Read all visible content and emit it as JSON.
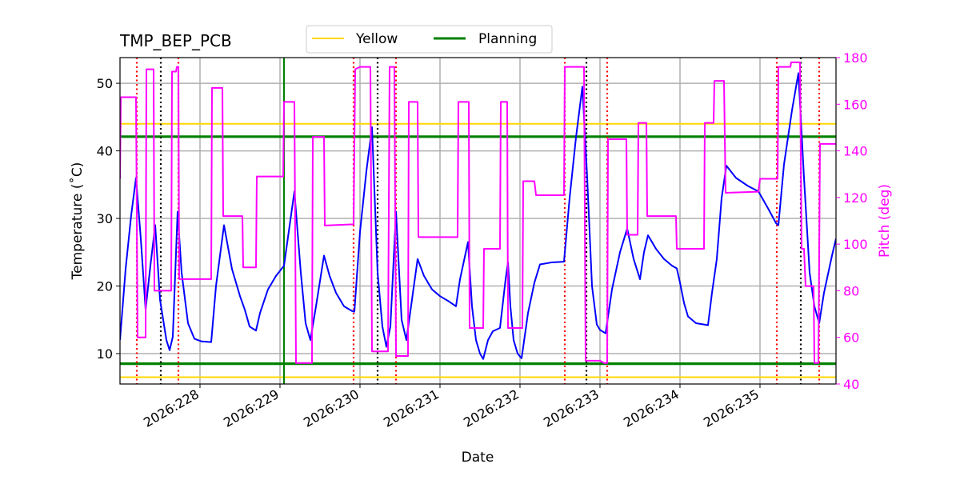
{
  "chart_data": {
    "type": "line",
    "title": "TMP_BEP_PCB",
    "xlabel": "Date",
    "ylabel": "Temperature ($^\\circ$C)",
    "ylabel_display": "Temperature (˚C)",
    "y2label": "Pitch (deg)",
    "xlim": [
      227.0,
      235.95
    ],
    "ylim": [
      5.5,
      53.8
    ],
    "y2lim": [
      40,
      180
    ],
    "x_ticks": [
      {
        "value": 228,
        "label": "2026:228"
      },
      {
        "value": 229,
        "label": "2026:229"
      },
      {
        "value": 230,
        "label": "2026:230"
      },
      {
        "value": 231,
        "label": "2026:231"
      },
      {
        "value": 232,
        "label": "2026:232"
      },
      {
        "value": 233,
        "label": "2026:233"
      },
      {
        "value": 234,
        "label": "2026:234"
      },
      {
        "value": 235,
        "label": "2026:235"
      }
    ],
    "y_ticks": [
      10,
      20,
      30,
      40,
      50
    ],
    "y2_ticks": [
      40,
      60,
      80,
      100,
      120,
      140,
      160,
      180
    ],
    "grid": true,
    "legend": {
      "placement": "top-center",
      "entries": [
        {
          "name": "Yellow",
          "color": "#ffd700"
        },
        {
          "name": "Planning",
          "color": "#008000"
        }
      ]
    },
    "limits": [
      {
        "name": "Yellow",
        "values": [
          6.5,
          44.0
        ],
        "color": "#ffd700"
      },
      {
        "name": "Planning",
        "values": [
          8.5,
          42.1
        ],
        "color": "#008000"
      }
    ],
    "planning_vline": {
      "x": 229.05,
      "color": "#008000"
    },
    "red_vlines": [
      227.21,
      227.73,
      229.92,
      230.45,
      232.56,
      233.09,
      235.21,
      235.74
    ],
    "black_vlines": [
      227.51,
      230.22,
      232.83,
      235.51
    ],
    "series": [
      {
        "axis": "left",
        "color": "#0000ff",
        "points": [
          [
            227.0,
            12.0
          ],
          [
            227.07,
            22.5
          ],
          [
            227.14,
            30.5
          ],
          [
            227.2,
            36.0
          ],
          [
            227.26,
            27.0
          ],
          [
            227.32,
            16.5
          ],
          [
            227.38,
            23.0
          ],
          [
            227.44,
            29.0
          ],
          [
            227.5,
            18.0
          ],
          [
            227.58,
            12.0
          ],
          [
            227.62,
            10.5
          ],
          [
            227.66,
            12.5
          ],
          [
            227.72,
            31.0
          ],
          [
            227.77,
            22.0
          ],
          [
            227.85,
            14.5
          ],
          [
            227.93,
            12.2
          ],
          [
            228.02,
            11.8
          ],
          [
            228.14,
            11.7
          ],
          [
            228.2,
            20.0
          ],
          [
            228.3,
            29.0
          ],
          [
            228.4,
            22.5
          ],
          [
            228.5,
            18.5
          ],
          [
            228.56,
            16.5
          ],
          [
            228.62,
            14.0
          ],
          [
            228.7,
            13.4
          ],
          [
            228.75,
            16.0
          ],
          [
            228.85,
            19.5
          ],
          [
            228.95,
            21.5
          ],
          [
            229.05,
            23.0
          ],
          [
            229.18,
            34.0
          ],
          [
            229.26,
            22.0
          ],
          [
            229.32,
            14.5
          ],
          [
            229.38,
            12.0
          ],
          [
            229.45,
            17.0
          ],
          [
            229.55,
            24.5
          ],
          [
            229.62,
            21.5
          ],
          [
            229.7,
            19.0
          ],
          [
            229.8,
            17.0
          ],
          [
            229.9,
            16.3
          ],
          [
            229.93,
            16.2
          ],
          [
            230.0,
            28.0
          ],
          [
            230.08,
            37.0
          ],
          [
            230.15,
            43.5
          ],
          [
            230.22,
            22.0
          ],
          [
            230.28,
            14.0
          ],
          [
            230.33,
            11.0
          ],
          [
            230.38,
            14.0
          ],
          [
            230.45,
            31.0
          ],
          [
            230.52,
            15.0
          ],
          [
            230.58,
            12.0
          ],
          [
            230.65,
            18.0
          ],
          [
            230.72,
            24.0
          ],
          [
            230.8,
            21.5
          ],
          [
            230.9,
            19.5
          ],
          [
            231.0,
            18.5
          ],
          [
            231.1,
            17.8
          ],
          [
            231.2,
            17.0
          ],
          [
            231.25,
            21.0
          ],
          [
            231.35,
            26.5
          ],
          [
            231.4,
            17.0
          ],
          [
            231.45,
            12.0
          ],
          [
            231.5,
            10.0
          ],
          [
            231.54,
            9.2
          ],
          [
            231.6,
            12.0
          ],
          [
            231.66,
            13.3
          ],
          [
            231.75,
            13.8
          ],
          [
            231.82,
            21.0
          ],
          [
            231.85,
            23.5
          ],
          [
            231.88,
            17.0
          ],
          [
            231.92,
            12.0
          ],
          [
            231.97,
            10.0
          ],
          [
            232.02,
            9.3
          ],
          [
            232.1,
            16.0
          ],
          [
            232.18,
            20.5
          ],
          [
            232.25,
            23.2
          ],
          [
            232.4,
            23.5
          ],
          [
            232.55,
            23.6
          ],
          [
            232.62,
            33.0
          ],
          [
            232.7,
            42.0
          ],
          [
            232.78,
            49.5
          ],
          [
            232.84,
            36.0
          ],
          [
            232.9,
            20.0
          ],
          [
            232.96,
            14.3
          ],
          [
            233.0,
            13.5
          ],
          [
            233.07,
            13.0
          ],
          [
            233.15,
            19.5
          ],
          [
            233.25,
            25.0
          ],
          [
            233.34,
            28.5
          ],
          [
            233.42,
            24.0
          ],
          [
            233.5,
            21.0
          ],
          [
            233.55,
            25.0
          ],
          [
            233.6,
            27.5
          ],
          [
            233.7,
            25.5
          ],
          [
            233.8,
            24.0
          ],
          [
            233.9,
            23.0
          ],
          [
            233.96,
            22.6
          ],
          [
            234.0,
            20.5
          ],
          [
            234.05,
            17.5
          ],
          [
            234.1,
            15.5
          ],
          [
            234.2,
            14.5
          ],
          [
            234.3,
            14.3
          ],
          [
            234.35,
            14.2
          ],
          [
            234.4,
            19.0
          ],
          [
            234.46,
            24.0
          ],
          [
            234.52,
            33.0
          ],
          [
            234.58,
            37.8
          ],
          [
            234.7,
            36.0
          ],
          [
            234.85,
            34.8
          ],
          [
            234.98,
            34.0
          ],
          [
            235.1,
            31.5
          ],
          [
            235.2,
            29.3
          ],
          [
            235.23,
            29.0
          ],
          [
            235.3,
            38.0
          ],
          [
            235.4,
            46.0
          ],
          [
            235.48,
            51.5
          ],
          [
            235.55,
            36.0
          ],
          [
            235.62,
            22.0
          ],
          [
            235.68,
            17.0
          ],
          [
            235.74,
            14.5
          ],
          [
            235.8,
            19.0
          ],
          [
            235.9,
            24.5
          ],
          [
            235.95,
            27.0
          ]
        ]
      },
      {
        "axis": "right",
        "color": "#ff00ff",
        "points": [
          [
            227.0,
            128.0
          ],
          [
            227.01,
            163.0
          ],
          [
            227.2,
            163.0
          ],
          [
            227.22,
            60.0
          ],
          [
            227.32,
            60.0
          ],
          [
            227.33,
            175.0
          ],
          [
            227.42,
            175.0
          ],
          [
            227.43,
            80.0
          ],
          [
            227.64,
            80.0
          ],
          [
            227.65,
            174.0
          ],
          [
            227.7,
            174.0
          ],
          [
            227.71,
            176.0
          ],
          [
            227.73,
            176.0
          ],
          [
            227.74,
            85.0
          ],
          [
            228.14,
            85.0
          ],
          [
            228.15,
            167.0
          ],
          [
            228.28,
            167.0
          ],
          [
            228.29,
            112.0
          ],
          [
            228.53,
            112.0
          ],
          [
            228.54,
            90.0
          ],
          [
            228.7,
            90.0
          ],
          [
            228.71,
            129.0
          ],
          [
            229.04,
            129.0
          ],
          [
            229.05,
            161.0
          ],
          [
            229.18,
            161.0
          ],
          [
            229.2,
            49.0
          ],
          [
            229.4,
            49.0
          ],
          [
            229.41,
            146.0
          ],
          [
            229.55,
            146.0
          ],
          [
            229.56,
            108.0
          ],
          [
            229.92,
            108.5
          ],
          [
            229.94,
            175.0
          ],
          [
            230.0,
            176.0
          ],
          [
            230.13,
            176.0
          ],
          [
            230.15,
            54.0
          ],
          [
            230.35,
            54.0
          ],
          [
            230.37,
            176.0
          ],
          [
            230.43,
            176.0
          ],
          [
            230.45,
            52.0
          ],
          [
            230.6,
            52.0
          ],
          [
            230.61,
            161.0
          ],
          [
            230.72,
            161.0
          ],
          [
            230.73,
            103.0
          ],
          [
            231.22,
            103.0
          ],
          [
            231.23,
            161.0
          ],
          [
            231.36,
            161.0
          ],
          [
            231.37,
            64.0
          ],
          [
            231.54,
            64.0
          ],
          [
            231.55,
            98.0
          ],
          [
            231.75,
            98.0
          ],
          [
            231.76,
            161.0
          ],
          [
            231.84,
            161.0
          ],
          [
            231.85,
            64.0
          ],
          [
            232.03,
            64.0
          ],
          [
            232.04,
            127.0
          ],
          [
            232.18,
            127.0
          ],
          [
            232.2,
            121.0
          ],
          [
            232.55,
            121.0
          ],
          [
            232.56,
            176.0
          ],
          [
            232.8,
            176.0
          ],
          [
            232.82,
            50.0
          ],
          [
            233.0,
            50.0
          ],
          [
            233.05,
            49.0
          ],
          [
            233.09,
            49.0
          ],
          [
            233.1,
            145.0
          ],
          [
            233.33,
            145.0
          ],
          [
            233.34,
            104.0
          ],
          [
            233.47,
            104.0
          ],
          [
            233.48,
            152.0
          ],
          [
            233.58,
            152.0
          ],
          [
            233.59,
            112.0
          ],
          [
            233.95,
            112.0
          ],
          [
            233.96,
            98.0
          ],
          [
            234.3,
            98.0
          ],
          [
            234.31,
            152.0
          ],
          [
            234.42,
            152.0
          ],
          [
            234.43,
            170.0
          ],
          [
            234.55,
            170.0
          ],
          [
            234.57,
            122.0
          ],
          [
            234.98,
            122.5
          ],
          [
            235.0,
            128.0
          ],
          [
            235.22,
            128.0
          ],
          [
            235.23,
            176.0
          ],
          [
            235.38,
            176.0
          ],
          [
            235.39,
            178.0
          ],
          [
            235.5,
            178.0
          ],
          [
            235.52,
            98.0
          ],
          [
            235.55,
            98.0
          ],
          [
            235.57,
            82.0
          ],
          [
            235.67,
            82.0
          ],
          [
            235.68,
            49.0
          ],
          [
            235.73,
            49.0
          ],
          [
            235.75,
            143.0
          ],
          [
            235.95,
            143.0
          ]
        ]
      }
    ]
  }
}
